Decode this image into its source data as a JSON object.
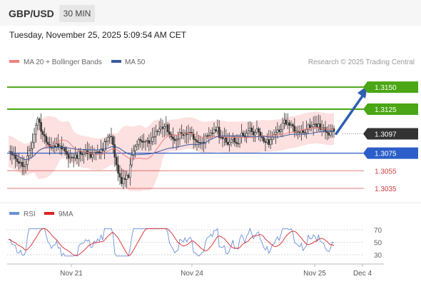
{
  "header": {
    "pair": "GBP/USD",
    "interval": "30 MIN",
    "timestamp": "Tuesday, November 25, 2025 5:09:54 AM CET"
  },
  "legend": {
    "ma20": "MA 20 + Bollinger Bands",
    "ma50": "MA 50",
    "credit": "Research © 2025 Trading Central"
  },
  "rsi_legend": {
    "rsi": "RSI",
    "ma9": "9MA"
  },
  "colors": {
    "resistance": "#4aa614",
    "pivot": "#2b5ec9",
    "support": "#d04040",
    "current": "#333333",
    "bollinger": "#fde0e0",
    "ma20": "#f08080",
    "ma50": "#3a5aa0",
    "candle_up": "#ffffff",
    "candle_down": "#333333",
    "rsi": "#6a8fd8",
    "rsi_ma": "#dd2222",
    "arrow": "#2f5fb0"
  },
  "chart_data": {
    "type": "candlestick",
    "title": "GBP/USD",
    "ylim": [
      1.3022,
      1.3172
    ],
    "x_ticks": [
      "Nov 21",
      "Nov 24",
      "Nov 25",
      "Dec 4"
    ],
    "current_price": 1.3097,
    "levels": [
      {
        "label": "1.3150",
        "value": 1.315,
        "kind": "resistance"
      },
      {
        "label": "1.3125",
        "value": 1.3125,
        "kind": "resistance"
      },
      {
        "label": "1.3097",
        "value": 1.3097,
        "kind": "current"
      },
      {
        "label": "1.3075",
        "value": 1.3075,
        "kind": "pivot"
      },
      {
        "label": "1.3055",
        "value": 1.3055,
        "kind": "support"
      },
      {
        "label": "1.3035",
        "value": 1.3035,
        "kind": "support"
      }
    ],
    "target_arrow": {
      "from": 1.3097,
      "to": 1.315
    },
    "rsi": {
      "ylim": [
        22,
        78
      ],
      "levels": [
        70,
        50,
        30
      ],
      "tick_labels": [
        "70",
        "50",
        "30"
      ]
    }
  }
}
